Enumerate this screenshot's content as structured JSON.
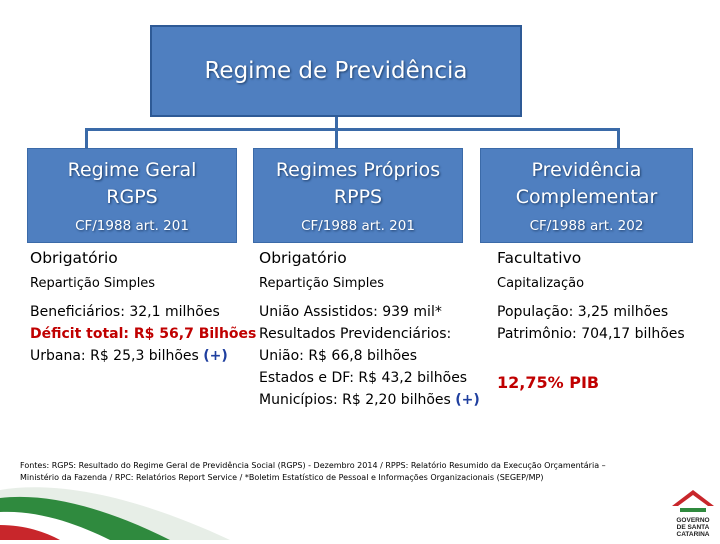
{
  "title": "Regime de Previdência",
  "columns": [
    {
      "header": [
        "Regime Geral",
        "RGPS"
      ],
      "cf": "CF/1988 art. 201",
      "type": "Obrigatório",
      "method": "Repartição Simples",
      "lines": [
        {
          "text": "Beneficiários: 32,1 milhões",
          "style": "normal"
        },
        {
          "text": "Déficit total: R$ 56,7 Bilhões",
          "style": "red"
        },
        {
          "text": "Urbana: R$ 25,3 bilhões",
          "suffix": "(+)",
          "style": "normal"
        }
      ]
    },
    {
      "header": [
        "Regimes Próprios",
        "RPPS"
      ],
      "cf": "CF/1988 art. 201",
      "type": "Obrigatório",
      "method": "Repartição Simples",
      "lines": [
        {
          "text": "União Assistidos: 939 mil*",
          "style": "normal"
        },
        {
          "text": "Resultados Previdenciários:",
          "style": "normal"
        },
        {
          "text": "União: R$ 66,8 bilhões",
          "style": "normal"
        },
        {
          "text": "Estados e DF: R$ 43,2 bilhões",
          "style": "normal"
        },
        {
          "text": "Municípios: R$ 2,20 bilhões",
          "suffix": "(+)",
          "style": "normal"
        }
      ]
    },
    {
      "header": [
        "Previdência",
        "Complementar"
      ],
      "cf": "CF/1988 art. 202",
      "type": "Facultativo",
      "method": "Capitalização",
      "lines": [
        {
          "text": "População: 3,25 milhões",
          "style": "normal"
        },
        {
          "text": "Patrimônio: 704,17 bilhões",
          "style": "normal"
        }
      ],
      "highlight": "12,75% PIB"
    }
  ],
  "footnote_1": "Fontes: RGPS: Resultado do Regime Geral de Previdência Social (RGPS) - Dezembro 2014 / RPPS: Relatório Resumido da Execução Orçamentária –",
  "footnote_2": "Ministério da Fazenda / RPC: Relatórios Report Service / *Boletim Estatístico de Pessoal e Informações Organizacionais (SEGEP/MP)",
  "logo_text": [
    "GOVERNO",
    "DE SANTA",
    "CATARINA"
  ],
  "colors": {
    "box": "#4f7fc0",
    "red": "#c00000",
    "blue": "#1f3f9f"
  }
}
